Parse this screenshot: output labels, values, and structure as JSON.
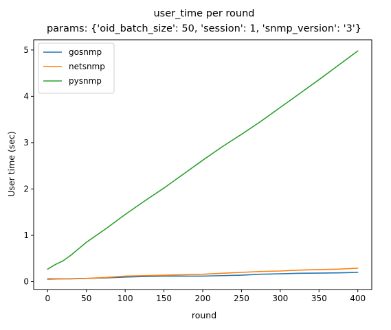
{
  "chart_data": {
    "type": "line",
    "title": "user_time per round",
    "subtitle": "params: {'oid_batch_size': 50, 'session': 1, 'snmp_version': '3'}",
    "xlabel": "round",
    "ylabel": "User time (sec)",
    "xlim": [
      -18,
      418
    ],
    "ylim": [
      -0.17,
      5.22
    ],
    "xticks": [
      0,
      50,
      100,
      150,
      200,
      250,
      300,
      350,
      400
    ],
    "yticks": [
      0,
      1,
      2,
      3,
      4,
      5
    ],
    "grid": false,
    "legend_position": "top-left",
    "series": [
      {
        "name": "gosnmp",
        "color": "#1f77b4",
        "x": [
          0,
          10,
          20,
          30,
          50,
          75,
          100,
          125,
          150,
          175,
          200,
          225,
          250,
          275,
          300,
          325,
          350,
          375,
          400
        ],
        "y": [
          0.06,
          0.06,
          0.06,
          0.06,
          0.07,
          0.08,
          0.1,
          0.11,
          0.12,
          0.12,
          0.12,
          0.13,
          0.14,
          0.16,
          0.17,
          0.18,
          0.185,
          0.19,
          0.2
        ]
      },
      {
        "name": "netsnmp",
        "color": "#ff7f0e",
        "x": [
          0,
          10,
          20,
          30,
          50,
          75,
          100,
          125,
          150,
          175,
          200,
          225,
          250,
          275,
          300,
          325,
          350,
          375,
          400
        ],
        "y": [
          0.05,
          0.055,
          0.06,
          0.065,
          0.07,
          0.09,
          0.12,
          0.13,
          0.14,
          0.15,
          0.16,
          0.18,
          0.2,
          0.22,
          0.23,
          0.25,
          0.26,
          0.27,
          0.29
        ]
      },
      {
        "name": "pysnmp",
        "color": "#2ca02c",
        "x": [
          0,
          5,
          10,
          15,
          20,
          30,
          40,
          50,
          75,
          100,
          125,
          150,
          175,
          200,
          225,
          250,
          275,
          300,
          325,
          350,
          375,
          400
        ],
        "y": [
          0.27,
          0.32,
          0.37,
          0.41,
          0.45,
          0.57,
          0.71,
          0.85,
          1.14,
          1.45,
          1.74,
          2.02,
          2.32,
          2.62,
          2.91,
          3.18,
          3.46,
          3.76,
          4.06,
          4.36,
          4.67,
          4.98
        ]
      }
    ]
  }
}
